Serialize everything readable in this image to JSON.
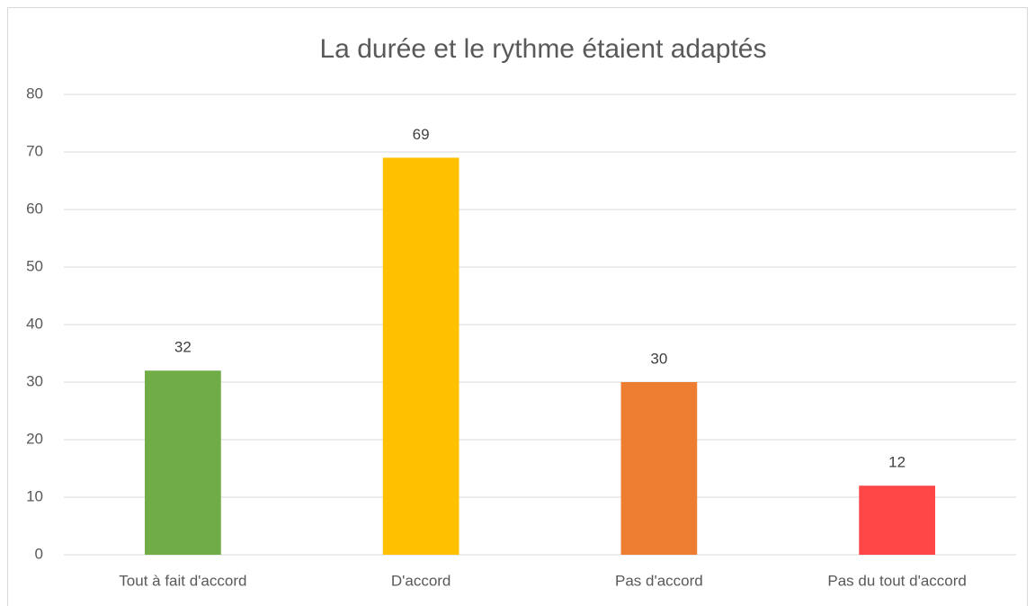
{
  "chart_data": {
    "type": "bar",
    "title": "La durée et le rythme étaient adaptés",
    "categories": [
      "Tout à fait d'accord",
      "D'accord",
      "Pas d'accord",
      "Pas du tout d'accord"
    ],
    "values": [
      32,
      69,
      30,
      12
    ],
    "colors": [
      "#70ad47",
      "#ffc000",
      "#ed7d31",
      "#ff4747"
    ],
    "ylim": [
      0,
      80
    ],
    "yticks": [
      0,
      10,
      20,
      30,
      40,
      50,
      60,
      70,
      80
    ],
    "grid": true
  }
}
